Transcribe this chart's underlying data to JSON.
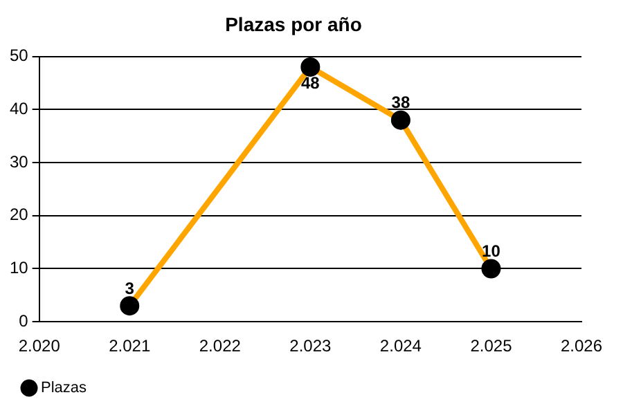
{
  "chart_data": {
    "type": "line",
    "title": "Plazas por año",
    "x": [
      2021,
      2023,
      2024,
      2025
    ],
    "series": [
      {
        "name": "Plazas",
        "color": "#ffa500",
        "colors": [
          "#000000",
          "#000000",
          "#000000",
          "#000000"
        ],
        "values": [
          3,
          48,
          38,
          10
        ]
      }
    ],
    "xlim": [
      2020,
      2026
    ],
    "xticks": [
      {
        "value": 2020,
        "label": "2.020"
      },
      {
        "value": 2021,
        "label": "2.021"
      },
      {
        "value": 2022,
        "label": "2.022"
      },
      {
        "value": 2023,
        "label": "2.023"
      },
      {
        "value": 2024,
        "label": "2.024"
      },
      {
        "value": 2025,
        "label": "2.025"
      },
      {
        "value": 2026,
        "label": "2.026"
      }
    ],
    "ylim": [
      0,
      50
    ],
    "yticks": [
      0,
      10,
      20,
      30,
      40,
      50
    ],
    "grid": "y",
    "legend": "bottom left",
    "marker": "circle",
    "line_style": "solid",
    "data_labels": true
  }
}
